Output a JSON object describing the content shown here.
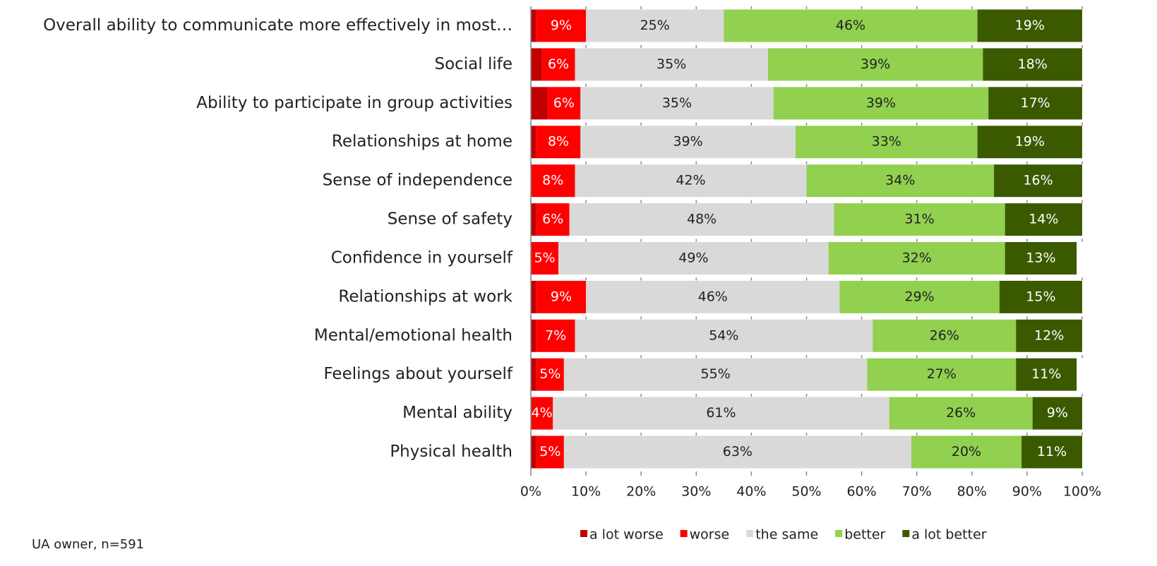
{
  "chart_data": {
    "type": "stacked_barh",
    "categories": [
      "Overall ability to communicate more effectively in most…",
      "Social life",
      "Ability to participate in group activities",
      "Relationships at home",
      "Sense of independence",
      "Sense of safety",
      "Confidence in yourself",
      "Relationships at work",
      "Mental/emotional health",
      "Feelings about yourself",
      "Mental ability",
      "Physical health"
    ],
    "series": [
      {
        "name": "a lot worse",
        "color": "#c00000",
        "values": [
          1,
          2,
          3,
          1,
          0,
          1,
          0,
          1,
          1,
          1,
          0,
          1
        ]
      },
      {
        "name": "worse",
        "color": "#ff0000",
        "values": [
          9,
          6,
          6,
          8,
          8,
          6,
          5,
          9,
          7,
          5,
          4,
          5
        ],
        "value_labels": [
          "9%",
          "6%",
          "6%",
          "8%",
          "8%",
          "6%",
          "5%",
          "9%",
          "7%",
          "5%",
          "4%",
          "5%"
        ]
      },
      {
        "name": "the same",
        "color": "#d9d9d9",
        "values": [
          25,
          35,
          35,
          39,
          42,
          48,
          49,
          46,
          54,
          55,
          61,
          63
        ],
        "value_labels": [
          "25%",
          "35%",
          "35%",
          "39%",
          "42%",
          "48%",
          "49%",
          "46%",
          "54%",
          "55%",
          "61%",
          "63%"
        ]
      },
      {
        "name": "better",
        "color": "#92d050",
        "values": [
          46,
          39,
          39,
          33,
          34,
          31,
          32,
          29,
          26,
          27,
          26,
          20
        ],
        "value_labels": [
          "46%",
          "39%",
          "39%",
          "33%",
          "34%",
          "31%",
          "32%",
          "29%",
          "26%",
          "27%",
          "26%",
          "20%"
        ]
      },
      {
        "name": "a lot better",
        "color": "#3b5a00",
        "values": [
          19,
          18,
          17,
          19,
          16,
          14,
          13,
          15,
          12,
          11,
          9,
          11
        ],
        "value_labels": [
          "19%",
          "18%",
          "17%",
          "19%",
          "16%",
          "14%",
          "13%",
          "15%",
          "12%",
          "11%",
          "9%",
          "11%"
        ]
      }
    ],
    "xlim": [
      0,
      100
    ],
    "xticks": [
      {
        "value": 0,
        "label": "0%"
      },
      {
        "value": 10,
        "label": "10%"
      },
      {
        "value": 20,
        "label": "20%"
      },
      {
        "value": 30,
        "label": "30%"
      },
      {
        "value": 40,
        "label": "40%"
      },
      {
        "value": 50,
        "label": "50%"
      },
      {
        "value": 60,
        "label": "60%"
      },
      {
        "value": 70,
        "label": "70%"
      },
      {
        "value": 80,
        "label": "80%"
      },
      {
        "value": 90,
        "label": "90%"
      },
      {
        "value": 100,
        "label": "100%"
      }
    ],
    "note": "UA owner, n=591",
    "legend": "bottom"
  }
}
